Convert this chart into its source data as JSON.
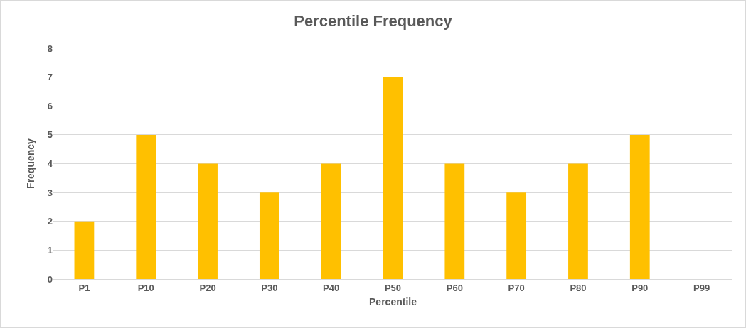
{
  "chart_data": {
    "type": "bar",
    "title": "Percentile Frequency",
    "xlabel": "Percentile",
    "ylabel": "Frequency",
    "categories": [
      "P1",
      "P10",
      "P20",
      "P30",
      "P40",
      "P50",
      "P60",
      "P70",
      "P80",
      "P90",
      "P99"
    ],
    "values": [
      2,
      5,
      4,
      3,
      4,
      7,
      4,
      3,
      4,
      5,
      0
    ],
    "color": "#ffc000",
    "ylim": [
      0,
      8
    ],
    "yticks": [
      0,
      1,
      2,
      3,
      4,
      5,
      6,
      7,
      8
    ],
    "grid": "y",
    "legend": false
  }
}
